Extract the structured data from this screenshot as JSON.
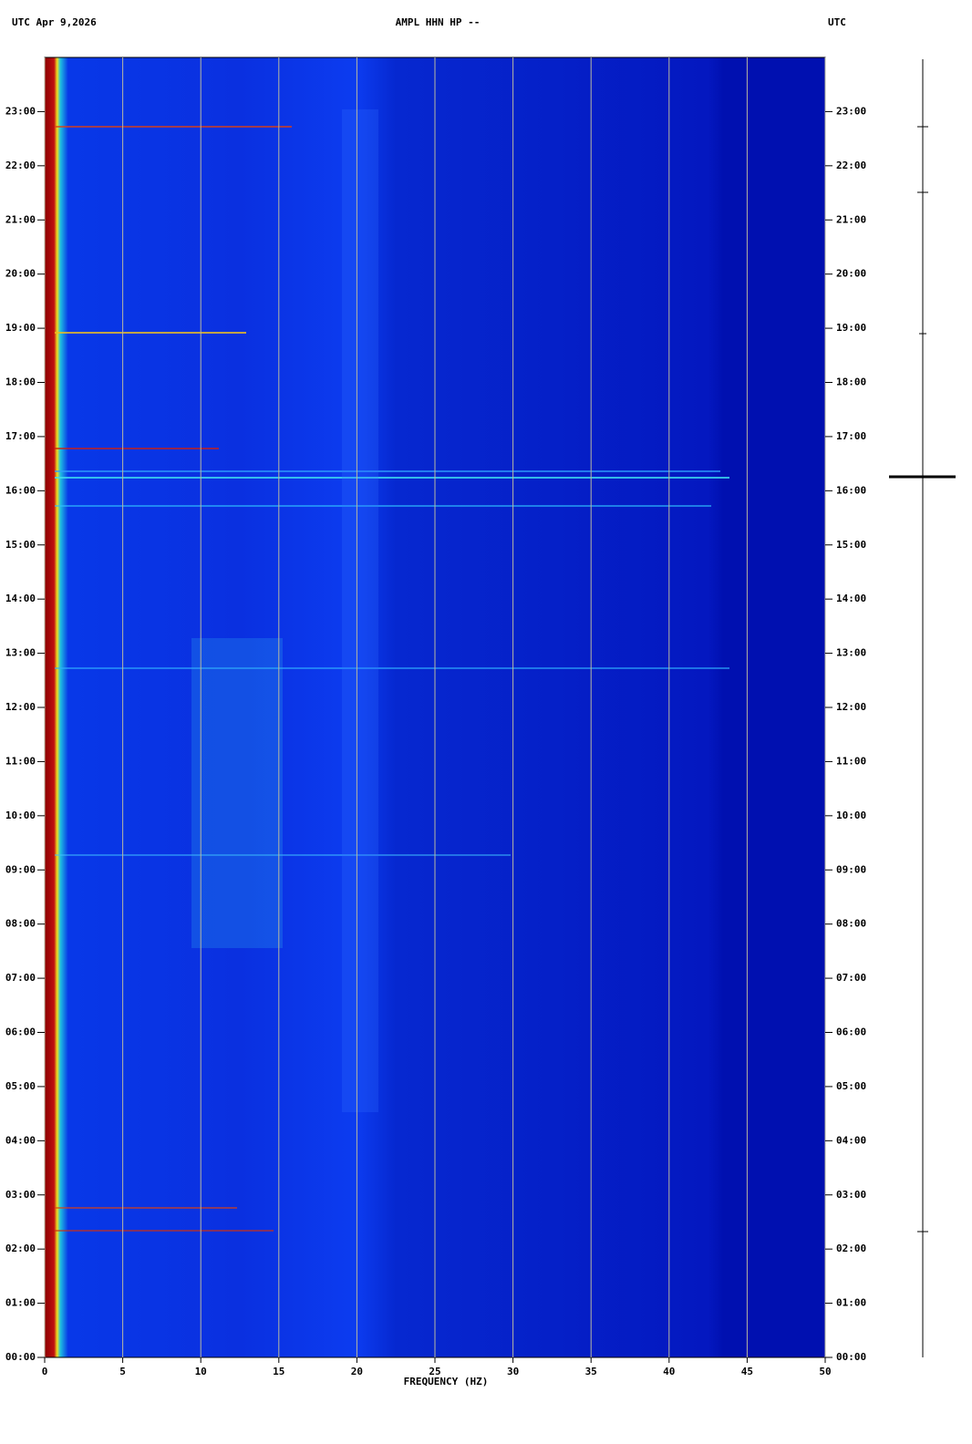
{
  "chart_data": {
    "type": "spectrogram",
    "title": "AMPL HHN HP --",
    "date_label": "UTC  Apr 9,2026",
    "right_label": "UTC",
    "xlabel": "FREQUENCY (HZ)",
    "xlim": [
      0,
      50
    ],
    "xticks": [
      0,
      5,
      10,
      15,
      20,
      25,
      30,
      35,
      40,
      45,
      50
    ],
    "ylim": [
      0,
      24
    ],
    "yticks": [
      {
        "value": 0,
        "label": "00:00"
      },
      {
        "value": 1,
        "label": "01:00"
      },
      {
        "value": 2,
        "label": "02:00"
      },
      {
        "value": 3,
        "label": "03:00"
      },
      {
        "value": 4,
        "label": "04:00"
      },
      {
        "value": 5,
        "label": "05:00"
      },
      {
        "value": 6,
        "label": "06:00"
      },
      {
        "value": 7,
        "label": "07:00"
      },
      {
        "value": 8,
        "label": "08:00"
      },
      {
        "value": 9,
        "label": "09:00"
      },
      {
        "value": 10,
        "label": "10:00"
      },
      {
        "value": 11,
        "label": "11:00"
      },
      {
        "value": 12,
        "label": "12:00"
      },
      {
        "value": 13,
        "label": "13:00"
      },
      {
        "value": 14,
        "label": "14:00"
      },
      {
        "value": 15,
        "label": "15:00"
      },
      {
        "value": 16,
        "label": "16:00"
      },
      {
        "value": 17,
        "label": "17:00"
      },
      {
        "value": 18,
        "label": "18:00"
      },
      {
        "value": 19,
        "label": "19:00"
      },
      {
        "value": 20,
        "label": "20:00"
      },
      {
        "value": 21,
        "label": "21:00"
      },
      {
        "value": 22,
        "label": "22:00"
      },
      {
        "value": 23,
        "label": "23:00"
      }
    ],
    "grid": true,
    "grid_color": "#b8b8a0"
  }
}
